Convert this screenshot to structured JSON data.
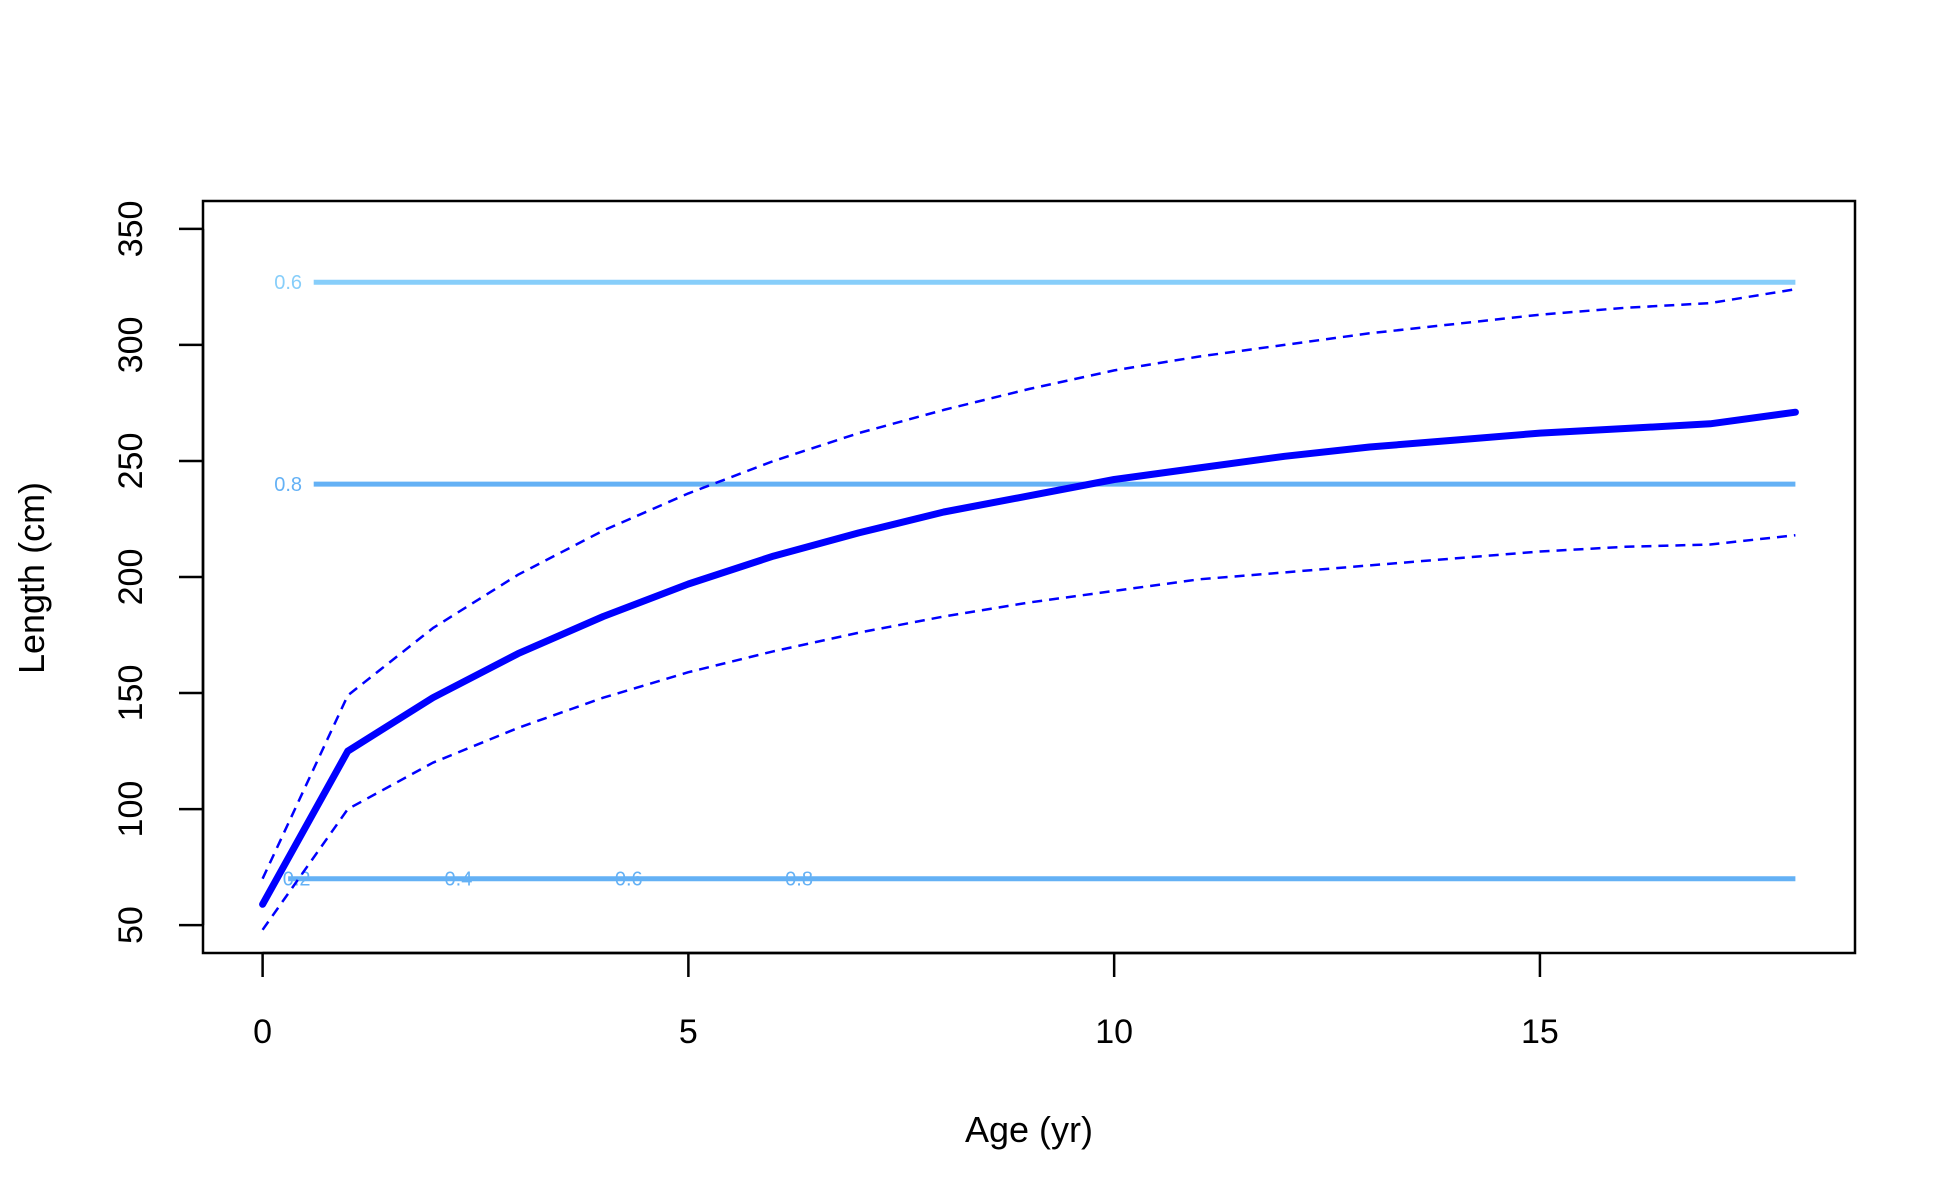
{
  "chart_data": {
    "type": "line",
    "xlabel": "Age (yr)",
    "ylabel": "Length (cm)",
    "xlim": [
      -0.7,
      18.7
    ],
    "ylim": [
      38,
      362
    ],
    "xticks": [
      0,
      5,
      10,
      15
    ],
    "yticks": [
      50,
      100,
      150,
      200,
      250,
      300,
      350
    ],
    "x": [
      0,
      1,
      2,
      3,
      4,
      5,
      6,
      7,
      8,
      9,
      10,
      11,
      12,
      13,
      14,
      15,
      16,
      17,
      18
    ],
    "series": [
      {
        "style": "solid-thick",
        "color": "#0000ff",
        "values": [
          59,
          125,
          148,
          167,
          183,
          197,
          209,
          219,
          228,
          235,
          242,
          247,
          252,
          256,
          259,
          262,
          264,
          266,
          271
        ]
      },
      {
        "style": "dashed",
        "color": "#0000ff",
        "values": [
          70,
          149,
          178,
          201,
          220,
          236,
          250,
          262,
          272,
          281,
          289,
          295,
          300,
          305,
          309,
          313,
          316,
          318,
          324
        ]
      },
      {
        "style": "dashed",
        "color": "#0000ff",
        "values": [
          48,
          100,
          120,
          135,
          148,
          159,
          168,
          176,
          183,
          189,
          194,
          199,
          202,
          205,
          208,
          211,
          213,
          214,
          218
        ]
      }
    ],
    "contours": [
      {
        "y": 327,
        "x_start": 0.6,
        "x_end": 18,
        "color": "#87cefa",
        "labels": [
          {
            "text": "0.6",
            "x": 0.3
          }
        ]
      },
      {
        "y": 240,
        "x_start": 0.6,
        "x_end": 18,
        "color": "#64b1f5",
        "labels": [
          {
            "text": "0.8",
            "x": 0.3
          }
        ]
      },
      {
        "y": 70,
        "x_start": 0.3,
        "x_end": 18,
        "color": "#64b1f5",
        "labels": [
          {
            "text": "0.2",
            "x": 0.4
          },
          {
            "text": "0.4",
            "x": 2.3
          },
          {
            "text": "0.6",
            "x": 4.3
          },
          {
            "text": "0.8",
            "x": 6.3
          }
        ]
      }
    ]
  }
}
